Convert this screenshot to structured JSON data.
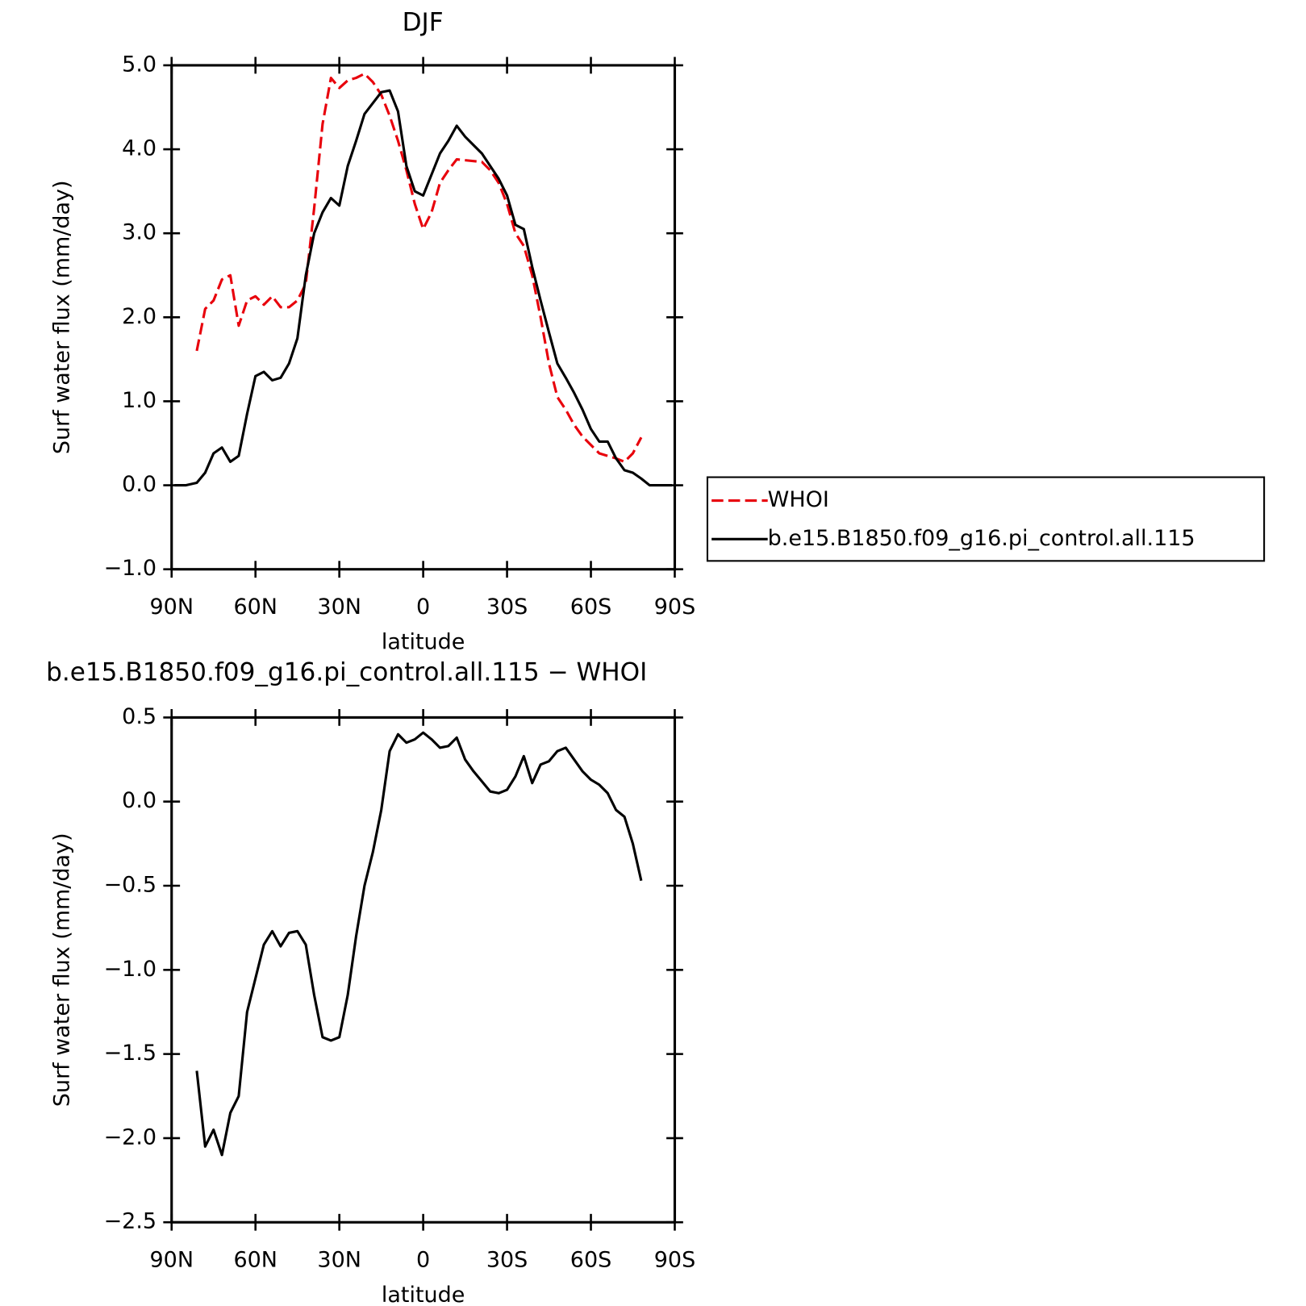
{
  "chart_data": [
    {
      "type": "line",
      "title": "DJF",
      "xlabel": "latitude",
      "ylabel": "Surf water flux (mm/day)",
      "x": [
        89,
        85,
        81,
        78,
        75,
        72,
        69,
        66,
        63,
        60,
        57,
        54,
        51,
        48,
        45,
        42,
        39,
        36,
        33,
        30,
        27,
        24,
        21,
        18,
        15,
        12,
        9,
        6,
        3,
        0,
        -3,
        -6,
        -9,
        -12,
        -15,
        -18,
        -21,
        -24,
        -27,
        -30,
        -33,
        -36,
        -39,
        -42,
        -45,
        -48,
        -51,
        -54,
        -57,
        -60,
        -63,
        -66,
        -69,
        -72,
        -75,
        -78,
        -81,
        -85,
        -89
      ],
      "series": [
        {
          "name": "WHOI",
          "color": "#e8000b",
          "dash": true,
          "values": [
            null,
            null,
            1.6,
            2.1,
            2.2,
            2.45,
            2.5,
            1.9,
            2.2,
            2.25,
            2.15,
            2.25,
            2.12,
            2.12,
            2.2,
            2.4,
            3.3,
            4.3,
            4.85,
            4.73,
            4.82,
            4.85,
            4.9,
            4.8,
            4.65,
            4.4,
            4.1,
            3.75,
            3.35,
            3.05,
            3.25,
            3.6,
            3.75,
            3.88,
            3.87,
            3.86,
            3.85,
            3.75,
            3.6,
            3.35,
            3.0,
            2.85,
            2.5,
            2.0,
            1.45,
            1.05,
            0.9,
            0.72,
            0.58,
            0.48,
            0.38,
            0.35,
            0.32,
            0.28,
            0.38,
            0.57,
            null,
            null,
            null
          ]
        },
        {
          "name": "b.e15.B1850.f09_g16.pi_control.all.115",
          "color": "#000000",
          "dash": false,
          "values": [
            0.0,
            0.0,
            0.03,
            0.15,
            0.38,
            0.45,
            0.28,
            0.35,
            0.85,
            1.3,
            1.35,
            1.25,
            1.28,
            1.45,
            1.75,
            2.5,
            3.0,
            3.25,
            3.42,
            3.33,
            3.8,
            4.1,
            4.42,
            4.55,
            4.68,
            4.7,
            4.45,
            3.8,
            3.5,
            3.45,
            3.7,
            3.95,
            4.1,
            4.28,
            4.15,
            4.05,
            3.95,
            3.8,
            3.65,
            3.45,
            3.1,
            3.05,
            2.6,
            2.2,
            1.82,
            1.45,
            1.28,
            1.1,
            0.9,
            0.67,
            0.52,
            0.52,
            0.32,
            0.18,
            0.15,
            0.08,
            0.0,
            0.0,
            0.0
          ]
        }
      ],
      "xlim": [
        90,
        -90
      ],
      "xticks": [
        {
          "value": 90,
          "label": "90N"
        },
        {
          "value": 60,
          "label": "60N"
        },
        {
          "value": 30,
          "label": "30N"
        },
        0,
        {
          "value": -30,
          "label": "30S"
        },
        {
          "value": -60,
          "label": "60S"
        },
        {
          "value": -90,
          "label": "90S"
        }
      ],
      "ylim": [
        -1,
        5
      ],
      "yticks": [
        {
          "value": -1,
          "label": "−1.0"
        },
        {
          "value": 0,
          "label": "0.0"
        },
        {
          "value": 1,
          "label": "1.0"
        },
        {
          "value": 2,
          "label": "2.0"
        },
        {
          "value": 3,
          "label": "3.0"
        },
        {
          "value": 4,
          "label": "4.0"
        },
        {
          "value": 5,
          "label": "5.0"
        }
      ],
      "legend": "right"
    },
    {
      "type": "line",
      "title": "b.e15.B1850.f09_g16.pi_control.all.115 − WHOI",
      "xlabel": "latitude",
      "ylabel": "Surf water flux (mm/day)",
      "x": [
        89,
        85,
        81,
        78,
        75,
        72,
        69,
        66,
        63,
        60,
        57,
        54,
        51,
        48,
        45,
        42,
        39,
        36,
        33,
        30,
        27,
        24,
        21,
        18,
        15,
        12,
        9,
        6,
        3,
        0,
        -3,
        -6,
        -9,
        -12,
        -15,
        -18,
        -21,
        -24,
        -27,
        -30,
        -33,
        -36,
        -39,
        -42,
        -45,
        -48,
        -51,
        -54,
        -57,
        -60,
        -63,
        -66,
        -69,
        -72,
        -75,
        -78,
        -81,
        -85,
        -89
      ],
      "series": [
        {
          "color": "#000000",
          "dash": false,
          "values": [
            null,
            null,
            -1.6,
            -2.05,
            -1.95,
            -2.1,
            -1.85,
            -1.75,
            -1.25,
            -1.05,
            -0.85,
            -0.77,
            -0.86,
            -0.78,
            -0.77,
            -0.85,
            -1.15,
            -1.4,
            -1.42,
            -1.4,
            -1.15,
            -0.8,
            -0.5,
            -0.3,
            -0.05,
            0.3,
            0.4,
            0.35,
            0.37,
            0.41,
            0.37,
            0.32,
            0.33,
            0.38,
            0.25,
            0.18,
            0.12,
            0.06,
            0.05,
            0.07,
            0.15,
            0.27,
            0.11,
            0.22,
            0.24,
            0.3,
            0.32,
            0.25,
            0.18,
            0.13,
            0.1,
            0.05,
            -0.05,
            -0.09,
            -0.25,
            -0.47,
            null,
            null,
            null
          ]
        }
      ],
      "xlim": [
        90,
        -90
      ],
      "xticks": [
        {
          "value": 90,
          "label": "90N"
        },
        {
          "value": 60,
          "label": "60N"
        },
        {
          "value": 30,
          "label": "30N"
        },
        0,
        {
          "value": -30,
          "label": "30S"
        },
        {
          "value": -60,
          "label": "60S"
        },
        {
          "value": -90,
          "label": "90S"
        }
      ],
      "ylim": [
        -2.5,
        0.5
      ],
      "yticks": [
        {
          "value": -2.5,
          "label": "−2.5"
        },
        {
          "value": -2,
          "label": "−2.0"
        },
        {
          "value": -1.5,
          "label": "−1.5"
        },
        {
          "value": -1,
          "label": "−1.0"
        },
        {
          "value": -0.5,
          "label": "−0.5"
        },
        {
          "value": 0,
          "label": "0.0"
        },
        {
          "value": 0.5,
          "label": "0.5"
        }
      ]
    }
  ]
}
